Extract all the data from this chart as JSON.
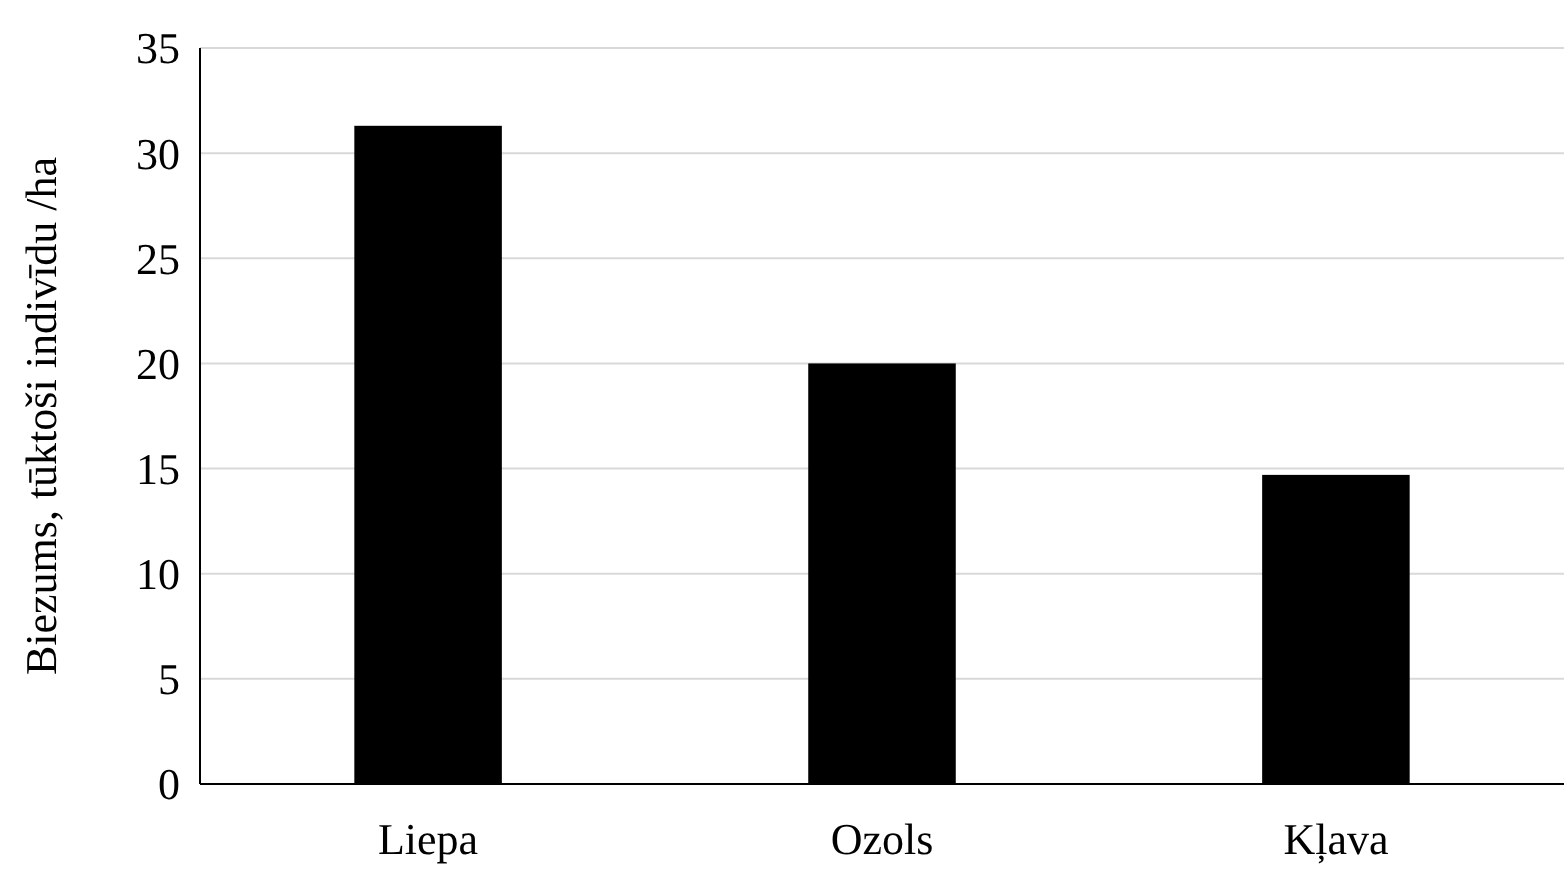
{
  "chart_data": {
    "type": "bar",
    "ylabel": "Biezums, tūktoši indivīdu /ha",
    "categories": [
      "Liepa",
      "Ozols",
      "Kļava"
    ],
    "values": [
      31.3,
      20,
      14.7
    ],
    "color": "#000000",
    "ylim": [
      0,
      35
    ],
    "yticks": [
      0,
      5,
      10,
      15,
      20,
      25,
      30,
      35
    ],
    "grid": "y"
  }
}
